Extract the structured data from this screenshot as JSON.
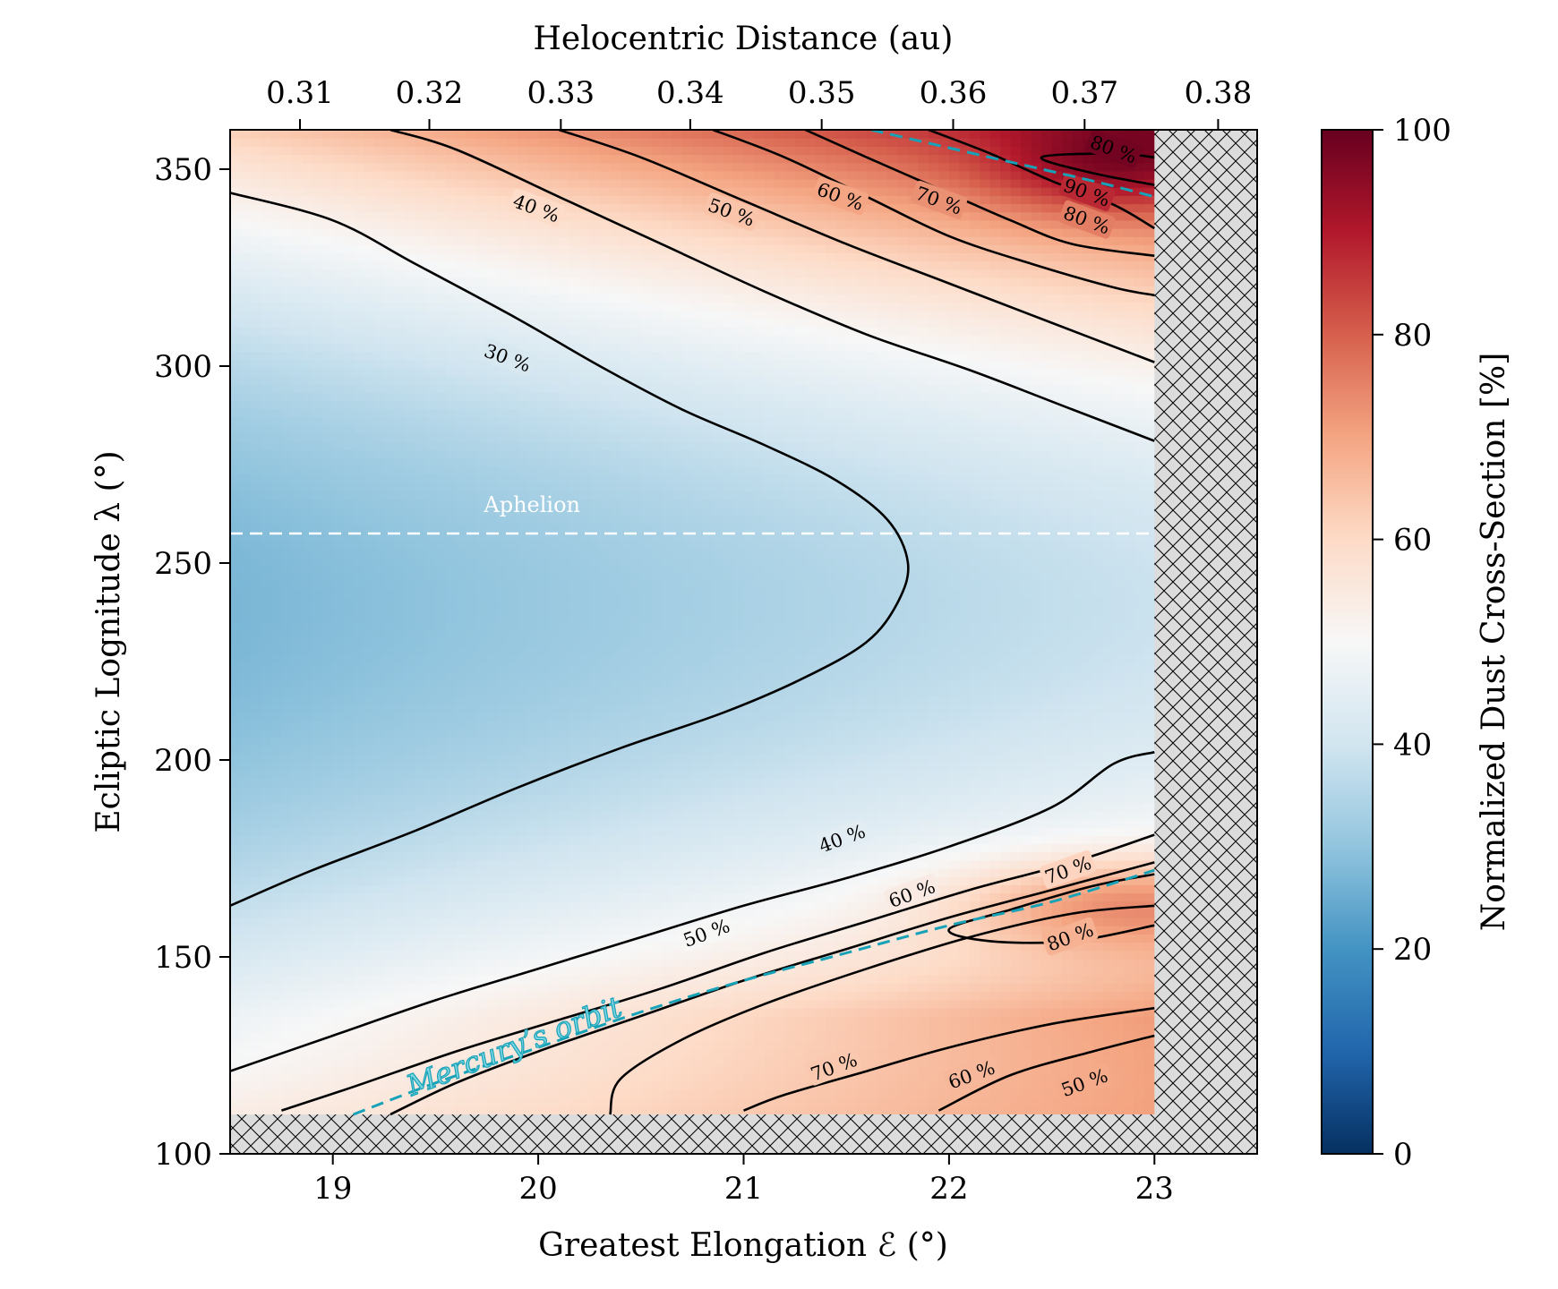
{
  "chart_data": {
    "type": "heatmap",
    "xlabel": "Greatest Elongation ℰ (°)",
    "ylabel": "Ecliptic Lognitude λ (°)",
    "x2label": "Helocentric Distance (au)",
    "colorbar_label": "Normalized Dust Cross-Section [%]",
    "xlim": [
      18.5,
      23.5
    ],
    "ylim": [
      100,
      360
    ],
    "data_xlim": [
      18.5,
      23.0
    ],
    "data_ylim": [
      110,
      360
    ],
    "x_ticks": [
      "19",
      "20",
      "21",
      "22",
      "23"
    ],
    "x_tick_values": [
      19,
      20,
      21,
      22,
      23
    ],
    "y_ticks": [
      "100",
      "150",
      "200",
      "250",
      "300",
      "350"
    ],
    "y_tick_values": [
      100,
      150,
      200,
      250,
      300,
      350
    ],
    "x2_ticks": [
      "0.31",
      "0.32",
      "0.33",
      "0.34",
      "0.35",
      "0.36",
      "0.37",
      "0.38"
    ],
    "x2_tick_elongation": [
      18.84,
      19.47,
      20.11,
      20.74,
      21.38,
      22.02,
      22.66,
      23.31
    ],
    "colorbar_ticks": [
      "0",
      "20",
      "40",
      "60",
      "80",
      "100"
    ],
    "colorbar_range": [
      0,
      100
    ],
    "colormap": "RdBu_r",
    "colormap_stops": [
      "#053061",
      "#2166ac",
      "#4393c3",
      "#92c5de",
      "#d1e5f0",
      "#f7f7f7",
      "#fddbc7",
      "#f4a582",
      "#d6604d",
      "#b2182b",
      "#67001f"
    ],
    "hatch_region_color": "#dcdcdc",
    "contour_color": "#000000",
    "contour_levels_percent": [
      30,
      40,
      50,
      60,
      70,
      80,
      90
    ],
    "contour_labels": [
      {
        "text": "30 %",
        "x": 19.85,
        "y": 302
      },
      {
        "text": "40 %",
        "x": 19.99,
        "y": 340
      },
      {
        "text": "50 %",
        "x": 20.94,
        "y": 339
      },
      {
        "text": "60 %",
        "x": 21.47,
        "y": 343
      },
      {
        "text": "70 %",
        "x": 21.95,
        "y": 342
      },
      {
        "text": "80 %",
        "x": 22.8,
        "y": 355
      },
      {
        "text": "90 %",
        "x": 22.67,
        "y": 344
      },
      {
        "text": "80 %",
        "x": 22.67,
        "y": 337
      },
      {
        "text": "40 %",
        "x": 21.48,
        "y": 180
      },
      {
        "text": "50 %",
        "x": 20.82,
        "y": 156
      },
      {
        "text": "60 %",
        "x": 21.82,
        "y": 166
      },
      {
        "text": "70 %",
        "x": 22.58,
        "y": 172
      },
      {
        "text": "80 %",
        "x": 22.59,
        "y": 155
      },
      {
        "text": "70 %",
        "x": 21.44,
        "y": 122
      },
      {
        "text": "60 %",
        "x": 22.11,
        "y": 120
      },
      {
        "text": "50 %",
        "x": 22.66,
        "y": 118
      }
    ],
    "contours": [
      {
        "level": 30,
        "points": [
          [
            18.5,
            344
          ],
          [
            19.0,
            337
          ],
          [
            19.4,
            326
          ],
          [
            19.9,
            312
          ],
          [
            20.3,
            300
          ],
          [
            20.7,
            289
          ],
          [
            21.1,
            280
          ],
          [
            21.45,
            271
          ],
          [
            21.7,
            261
          ],
          [
            21.8,
            250
          ],
          [
            21.75,
            240
          ],
          [
            21.6,
            230
          ],
          [
            21.3,
            221
          ],
          [
            20.9,
            212
          ],
          [
            20.4,
            203
          ],
          [
            19.9,
            193
          ],
          [
            19.4,
            182
          ],
          [
            18.9,
            172
          ],
          [
            18.5,
            163
          ]
        ]
      },
      {
        "level": 40,
        "points": [
          [
            19.28,
            360
          ],
          [
            19.6,
            355
          ],
          [
            20.1,
            343
          ],
          [
            20.6,
            331
          ],
          [
            21.1,
            319
          ],
          [
            21.6,
            308
          ],
          [
            22.1,
            299
          ],
          [
            22.6,
            289
          ],
          [
            23.0,
            281
          ]
        ]
      },
      {
        "level": 40,
        "points": [
          [
            18.5,
            121
          ],
          [
            19.0,
            130
          ],
          [
            19.5,
            139
          ],
          [
            20.0,
            147
          ],
          [
            20.5,
            155
          ],
          [
            21.0,
            163
          ],
          [
            21.5,
            170
          ],
          [
            22.0,
            178
          ],
          [
            22.5,
            188
          ],
          [
            22.8,
            199
          ],
          [
            23.0,
            202
          ]
        ]
      },
      {
        "level": 50,
        "points": [
          [
            20.1,
            360
          ],
          [
            20.5,
            353
          ],
          [
            21.0,
            342
          ],
          [
            21.5,
            331
          ],
          [
            22.0,
            321
          ],
          [
            22.5,
            311
          ],
          [
            23.0,
            301
          ]
        ]
      },
      {
        "level": 50,
        "points": [
          [
            18.75,
            111
          ],
          [
            19.1,
            117
          ],
          [
            19.6,
            126
          ],
          [
            20.1,
            134
          ],
          [
            20.6,
            142
          ],
          [
            21.1,
            151
          ],
          [
            21.6,
            159
          ],
          [
            22.1,
            167
          ],
          [
            22.6,
            174
          ],
          [
            23.0,
            181
          ]
        ]
      },
      {
        "level": 60,
        "points": [
          [
            20.85,
            360
          ],
          [
            21.2,
            353
          ],
          [
            21.6,
            343
          ],
          [
            22.0,
            333
          ],
          [
            22.4,
            326
          ],
          [
            22.8,
            320
          ],
          [
            23.0,
            318
          ]
        ]
      },
      {
        "level": 60,
        "points": [
          [
            19.28,
            110
          ],
          [
            19.6,
            118
          ],
          [
            20.0,
            126
          ],
          [
            20.5,
            135
          ],
          [
            21.0,
            144
          ],
          [
            21.5,
            152
          ],
          [
            22.0,
            160
          ],
          [
            22.5,
            167
          ],
          [
            23.0,
            174
          ]
        ]
      },
      {
        "level": 60,
        "points": [
          [
            21.95,
            111
          ],
          [
            22.3,
            120
          ],
          [
            22.7,
            126
          ],
          [
            23.0,
            130
          ]
        ]
      },
      {
        "level": 70,
        "points": [
          [
            21.3,
            360
          ],
          [
            21.6,
            353
          ],
          [
            21.95,
            345
          ],
          [
            22.3,
            337
          ],
          [
            22.6,
            331
          ],
          [
            23.0,
            328
          ]
        ]
      },
      {
        "level": 70,
        "points": [
          [
            20.35,
            110
          ],
          [
            20.4,
            119
          ],
          [
            20.7,
            129
          ],
          [
            21.1,
            138
          ],
          [
            21.6,
            147
          ],
          [
            22.1,
            155
          ],
          [
            22.6,
            161
          ],
          [
            23.0,
            163
          ]
        ]
      },
      {
        "level": 70,
        "points": [
          [
            21.0,
            111
          ],
          [
            21.2,
            115
          ],
          [
            21.6,
            121
          ],
          [
            22.0,
            127
          ],
          [
            22.5,
            133
          ],
          [
            23.0,
            137
          ]
        ]
      },
      {
        "level": 80,
        "points": [
          [
            21.9,
            360
          ],
          [
            22.2,
            354
          ],
          [
            22.5,
            347
          ],
          [
            22.8,
            341
          ],
          [
            23.0,
            335
          ]
        ]
      },
      {
        "level": 80,
        "points": [
          [
            23.0,
            158
          ],
          [
            22.6,
            154
          ],
          [
            22.2,
            154
          ],
          [
            22.0,
            157
          ],
          [
            22.3,
            162
          ],
          [
            22.7,
            168
          ],
          [
            23.0,
            171
          ]
        ]
      },
      {
        "level": 90,
        "points": [
          [
            23.0,
            346
          ],
          [
            22.7,
            349
          ],
          [
            22.45,
            353
          ],
          [
            22.8,
            354
          ],
          [
            23.0,
            353
          ]
        ]
      }
    ],
    "annotations": [
      {
        "text": "Aphelion",
        "kind": "horizontal-line",
        "y": 257.5,
        "x_range": [
          18.5,
          23.0
        ],
        "color": "#ffffff",
        "label_x": 19.97
      },
      {
        "text": "Mercury’s orbit",
        "kind": "curve",
        "color": "#17a2b8",
        "points": [
          [
            19.1,
            110
          ],
          [
            19.5,
            118
          ],
          [
            20.0,
            127
          ],
          [
            20.5,
            136
          ],
          [
            21.0,
            144
          ],
          [
            21.5,
            151
          ],
          [
            22.0,
            158
          ],
          [
            22.5,
            164
          ],
          [
            23.0,
            172
          ]
        ]
      },
      {
        "text": "",
        "kind": "curve",
        "color": "#17a2b8",
        "points": [
          [
            21.62,
            360
          ],
          [
            22.2,
            353
          ],
          [
            22.7,
            347
          ],
          [
            23.0,
            343
          ]
        ]
      }
    ]
  }
}
